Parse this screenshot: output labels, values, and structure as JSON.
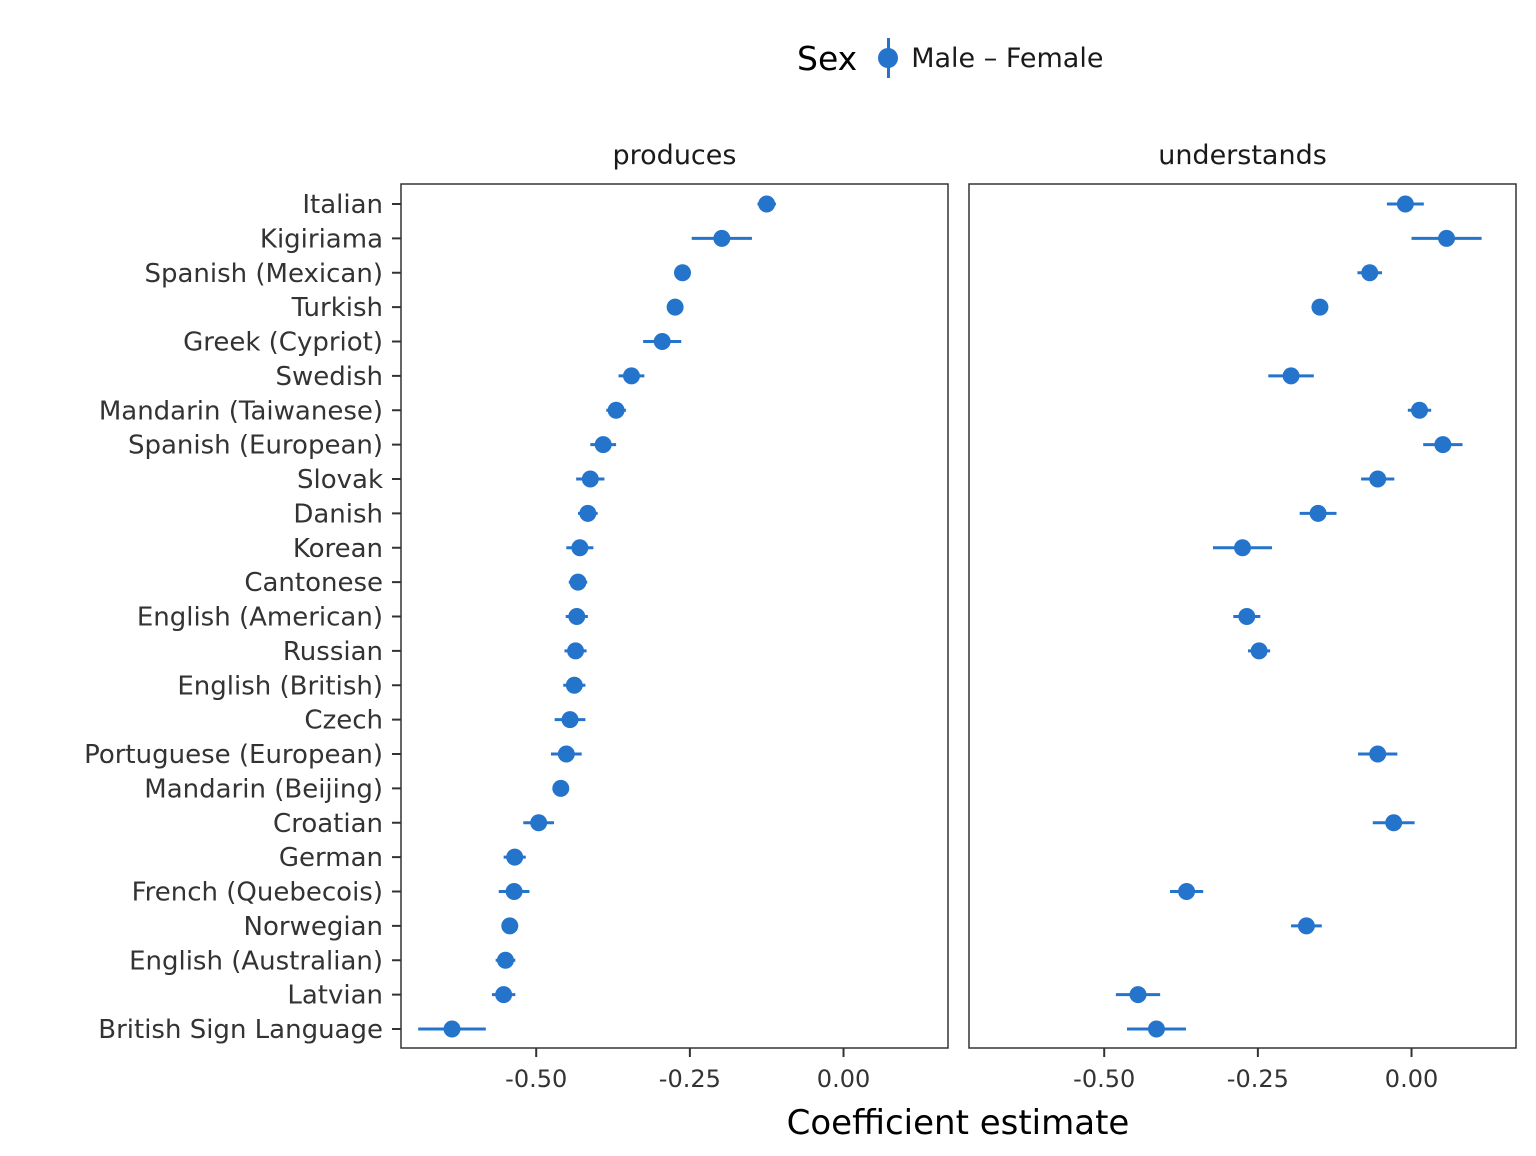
{
  "legend": {
    "title": "Sex",
    "label": "Male – Female"
  },
  "colors": {
    "point": "#2574cc",
    "panel_border": "#333333",
    "text": "#333333"
  },
  "chart_data": {
    "type": "scatter",
    "style": "dot-and-whisker",
    "xlabel": "Coefficient estimate",
    "xlim": [
      -0.72,
      0.17
    ],
    "x_ticks": [
      "-0.50",
      "-0.25",
      "0.00"
    ],
    "x_tick_values": [
      -0.5,
      -0.25,
      0.0
    ],
    "categories": [
      "Italian",
      "Kigiriama",
      "Spanish (Mexican)",
      "Turkish",
      "Greek (Cypriot)",
      "Swedish",
      "Mandarin (Taiwanese)",
      "Spanish (European)",
      "Slovak",
      "Danish",
      "Korean",
      "Cantonese",
      "English (American)",
      "Russian",
      "English (British)",
      "Czech",
      "Portuguese (European)",
      "Mandarin (Beijing)",
      "Croatian",
      "German",
      "French (Quebecois)",
      "Norwegian",
      "English (Australian)",
      "Latvian",
      "British Sign Language"
    ],
    "panels": [
      {
        "title": "produces",
        "series": [
          {
            "name": "Male – Female",
            "estimates": [
              -0.125,
              -0.198,
              -0.262,
              -0.274,
              -0.295,
              -0.345,
              -0.37,
              -0.391,
              -0.412,
              -0.416,
              -0.429,
              -0.432,
              -0.434,
              -0.436,
              -0.438,
              -0.445,
              -0.451,
              -0.46,
              -0.496,
              -0.535,
              -0.536,
              -0.543,
              -0.55,
              -0.553,
              -0.637
            ],
            "lower": [
              -0.14,
              -0.247,
              -0.272,
              -0.283,
              -0.326,
              -0.366,
              -0.386,
              -0.412,
              -0.435,
              -0.432,
              -0.451,
              -0.447,
              -0.452,
              -0.454,
              -0.456,
              -0.47,
              -0.476,
              -0.471,
              -0.521,
              -0.553,
              -0.561,
              -0.556,
              -0.566,
              -0.572,
              -0.692
            ],
            "upper": [
              -0.11,
              -0.149,
              -0.252,
              -0.265,
              -0.264,
              -0.324,
              -0.354,
              -0.37,
              -0.389,
              -0.4,
              -0.407,
              -0.417,
              -0.416,
              -0.418,
              -0.42,
              -0.42,
              -0.426,
              -0.449,
              -0.471,
              -0.517,
              -0.511,
              -0.53,
              -0.534,
              -0.534,
              -0.582
            ]
          }
        ]
      },
      {
        "title": "understands",
        "series": [
          {
            "name": "Male – Female",
            "estimates": [
              -0.01,
              0.057,
              -0.068,
              -0.149,
              -0.196,
              0.013,
              0.051,
              -0.055,
              -0.152,
              -0.275,
              -0.268,
              -0.248,
              -0.055,
              -0.029,
              -0.366,
              -0.171,
              -0.445,
              -0.415
            ],
            "lower": [
              -0.04,
              0.0,
              -0.088,
              -0.162,
              -0.233,
              -0.006,
              0.019,
              -0.082,
              -0.182,
              -0.323,
              -0.29,
              -0.266,
              -0.087,
              -0.063,
              -0.393,
              -0.196,
              -0.481,
              -0.463
            ],
            "upper": [
              0.02,
              0.114,
              -0.048,
              -0.136,
              -0.159,
              0.032,
              0.083,
              -0.028,
              -0.122,
              -0.227,
              -0.246,
              -0.23,
              -0.023,
              0.005,
              -0.339,
              -0.146,
              -0.409,
              -0.367
            ],
            "category_index": [
              0,
              1,
              2,
              3,
              5,
              6,
              7,
              8,
              9,
              10,
              12,
              13,
              16,
              18,
              20,
              21,
              23,
              24
            ]
          }
        ]
      }
    ]
  }
}
